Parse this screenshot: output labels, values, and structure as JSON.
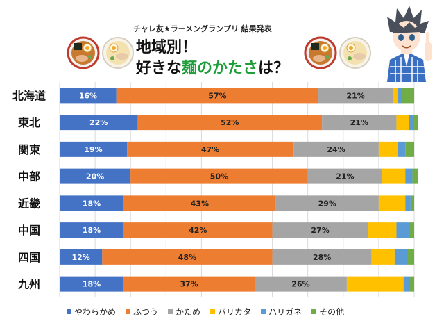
{
  "header": {
    "subtitle": "チャレ友★ラーメングランプリ 結果発表",
    "title_line1": "地域別！",
    "title_line2_pre": "好きな",
    "title_line2_highlight": "麺のかたさ",
    "title_line2_post": "は？"
  },
  "colors": {
    "yawarakame": "#4472c4",
    "futsuu": "#ed7d31",
    "katame": "#a5a5a5",
    "barikata": "#ffc000",
    "harigane": "#5b9bd5",
    "sonota": "#70ad47",
    "highlight": "#1e9e3a",
    "grid": "#d9d9d9"
  },
  "chart_data": {
    "type": "bar",
    "orientation": "horizontal",
    "stacked": "percent",
    "categories": [
      "北海道",
      "東北",
      "関東",
      "中部",
      "近畿",
      "中国",
      "四国",
      "九州"
    ],
    "series": [
      {
        "name": "やわらかめ",
        "values": [
          16,
          22,
          19,
          20,
          18,
          18,
          12,
          18
        ],
        "labels": [
          "16%",
          "22%",
          "19%",
          "20%",
          "18%",
          "18%",
          "12%",
          "18%"
        ]
      },
      {
        "name": "ふつう",
        "values": [
          57,
          52,
          47,
          50,
          43,
          42,
          48,
          37
        ],
        "labels": [
          "57%",
          "52%",
          "47%",
          "50%",
          "43%",
          "42%",
          "48%",
          "37%"
        ]
      },
      {
        "name": "かため",
        "values": [
          21,
          21,
          24,
          21,
          29,
          27,
          28,
          26
        ],
        "labels": [
          "21%",
          "21%",
          "24%",
          "21%",
          "29%",
          "27%",
          "28%",
          "26%"
        ]
      },
      {
        "name": "バリカタ",
        "values": [
          1.5,
          3.5,
          5.5,
          6.5,
          7.5,
          8,
          6.5,
          16
        ],
        "labels": [
          "",
          "",
          "",
          "",
          "",
          "",
          "",
          ""
        ]
      },
      {
        "name": "ハリガネ",
        "values": [
          1,
          1.5,
          2,
          2,
          1.5,
          3.5,
          3.5,
          1.5
        ],
        "labels": [
          "",
          "",
          "",
          "",
          "",
          "",
          "",
          ""
        ]
      },
      {
        "name": "その他",
        "values": [
          3.5,
          1,
          2.5,
          1.5,
          1,
          1.5,
          2,
          1.5
        ],
        "labels": [
          "",
          "",
          "",
          "",
          "",
          "",
          "",
          ""
        ]
      }
    ],
    "xlim": [
      0,
      100
    ],
    "grid": true,
    "legend_position": "bottom"
  }
}
